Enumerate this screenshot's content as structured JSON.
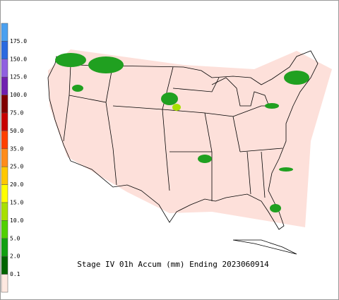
{
  "title": "Stage IV 01h Accum (mm) Ending 2023060914",
  "legend": {
    "labels": [
      "175.0",
      "150.0",
      "125.0",
      "100.0",
      "75.0",
      "50.0",
      "35.0",
      "25.0",
      "20.0",
      "15.0",
      "10.0",
      "5.0",
      "2.0",
      "0.1"
    ],
    "colors": [
      "#4aa0f0",
      "#2b6ae0",
      "#9060e0",
      "#7020b0",
      "#800000",
      "#c80000",
      "#ff4000",
      "#ff8c1a",
      "#ffc800",
      "#ffff00",
      "#a8e000",
      "#50d000",
      "#10a010",
      "#006400",
      "#fde8e0"
    ]
  }
}
